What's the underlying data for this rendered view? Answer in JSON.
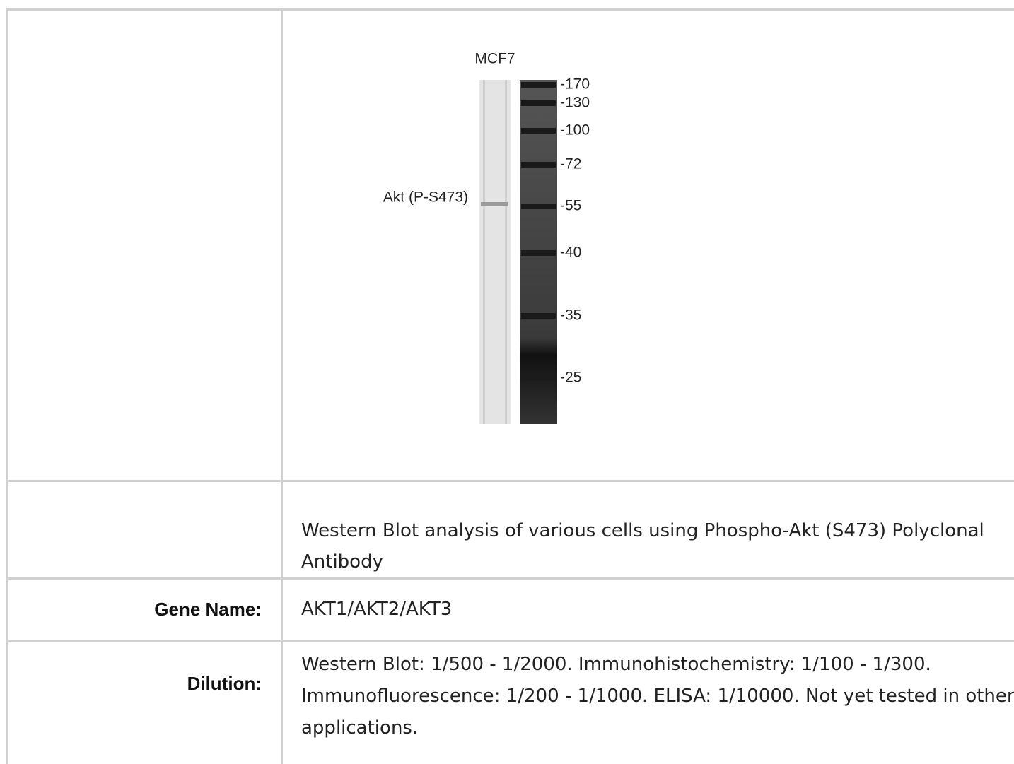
{
  "image": {
    "lane_label": "MCF7",
    "band_label": "Akt (P-S473)",
    "markers": [
      "-170",
      "-130",
      "-100",
      "-72",
      "-55",
      "-40",
      "-35",
      "-25"
    ]
  },
  "table": {
    "caption": "Western Blot analysis of various cells using Phospho-Akt (S473) Polyclonal Antibody",
    "rows": [
      [
        "Gene Name:",
        "AKT1/AKT2/AKT3"
      ],
      [
        "Dilution:",
        "Western Blot: 1/500 - 1/2000. Immunohistochemistry: 1/100 - 1/300. Immunofluorescence: 1/200 - 1/1000. ELISA: 1/10000. Not yet tested in other applications."
      ]
    ]
  }
}
